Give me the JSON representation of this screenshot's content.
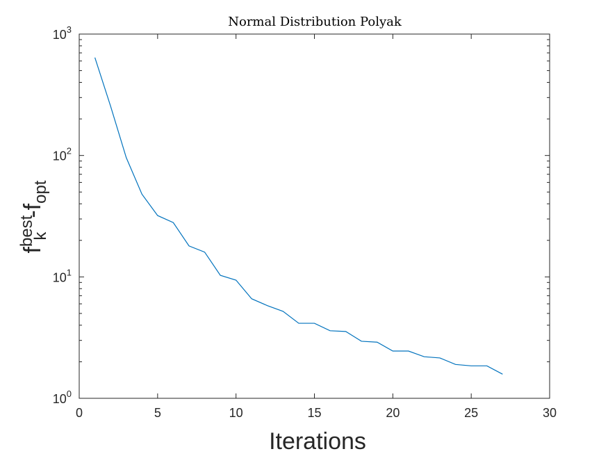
{
  "chart_data": {
    "type": "line",
    "title": "Normal Distribution Polyak",
    "xlabel": "Iterations",
    "ylabel": {
      "base1": "f",
      "sup1": "best",
      "sub1": "k",
      "sep": "-",
      "base2": "f",
      "sub2": "opt"
    },
    "xlim": [
      0,
      30
    ],
    "ylim": [
      1,
      1000
    ],
    "yscale": "log",
    "grid": false,
    "legend": "none",
    "x_ticks": [
      "0",
      "5",
      "10",
      "15",
      "20",
      "25",
      "30"
    ],
    "y_ticks": [
      {
        "base": "10",
        "exp": "0"
      },
      {
        "base": "10",
        "exp": "1"
      },
      {
        "base": "10",
        "exp": "2"
      },
      {
        "base": "10",
        "exp": "3"
      }
    ],
    "series": [
      {
        "color": "#0072bd",
        "x": [
          1,
          2,
          3,
          4,
          5,
          6,
          7,
          8,
          9,
          10,
          11,
          12,
          13,
          14,
          15,
          16,
          17,
          18,
          19,
          20,
          21,
          22,
          23,
          24,
          25,
          26,
          27
        ],
        "y": [
          640,
          255,
          96,
          48,
          32,
          28,
          18,
          16,
          10.3,
          9.4,
          6.6,
          5.8,
          5.2,
          4.15,
          4.15,
          3.6,
          3.55,
          2.95,
          2.9,
          2.45,
          2.45,
          2.2,
          2.15,
          1.9,
          1.85,
          1.85,
          1.58
        ]
      }
    ]
  }
}
